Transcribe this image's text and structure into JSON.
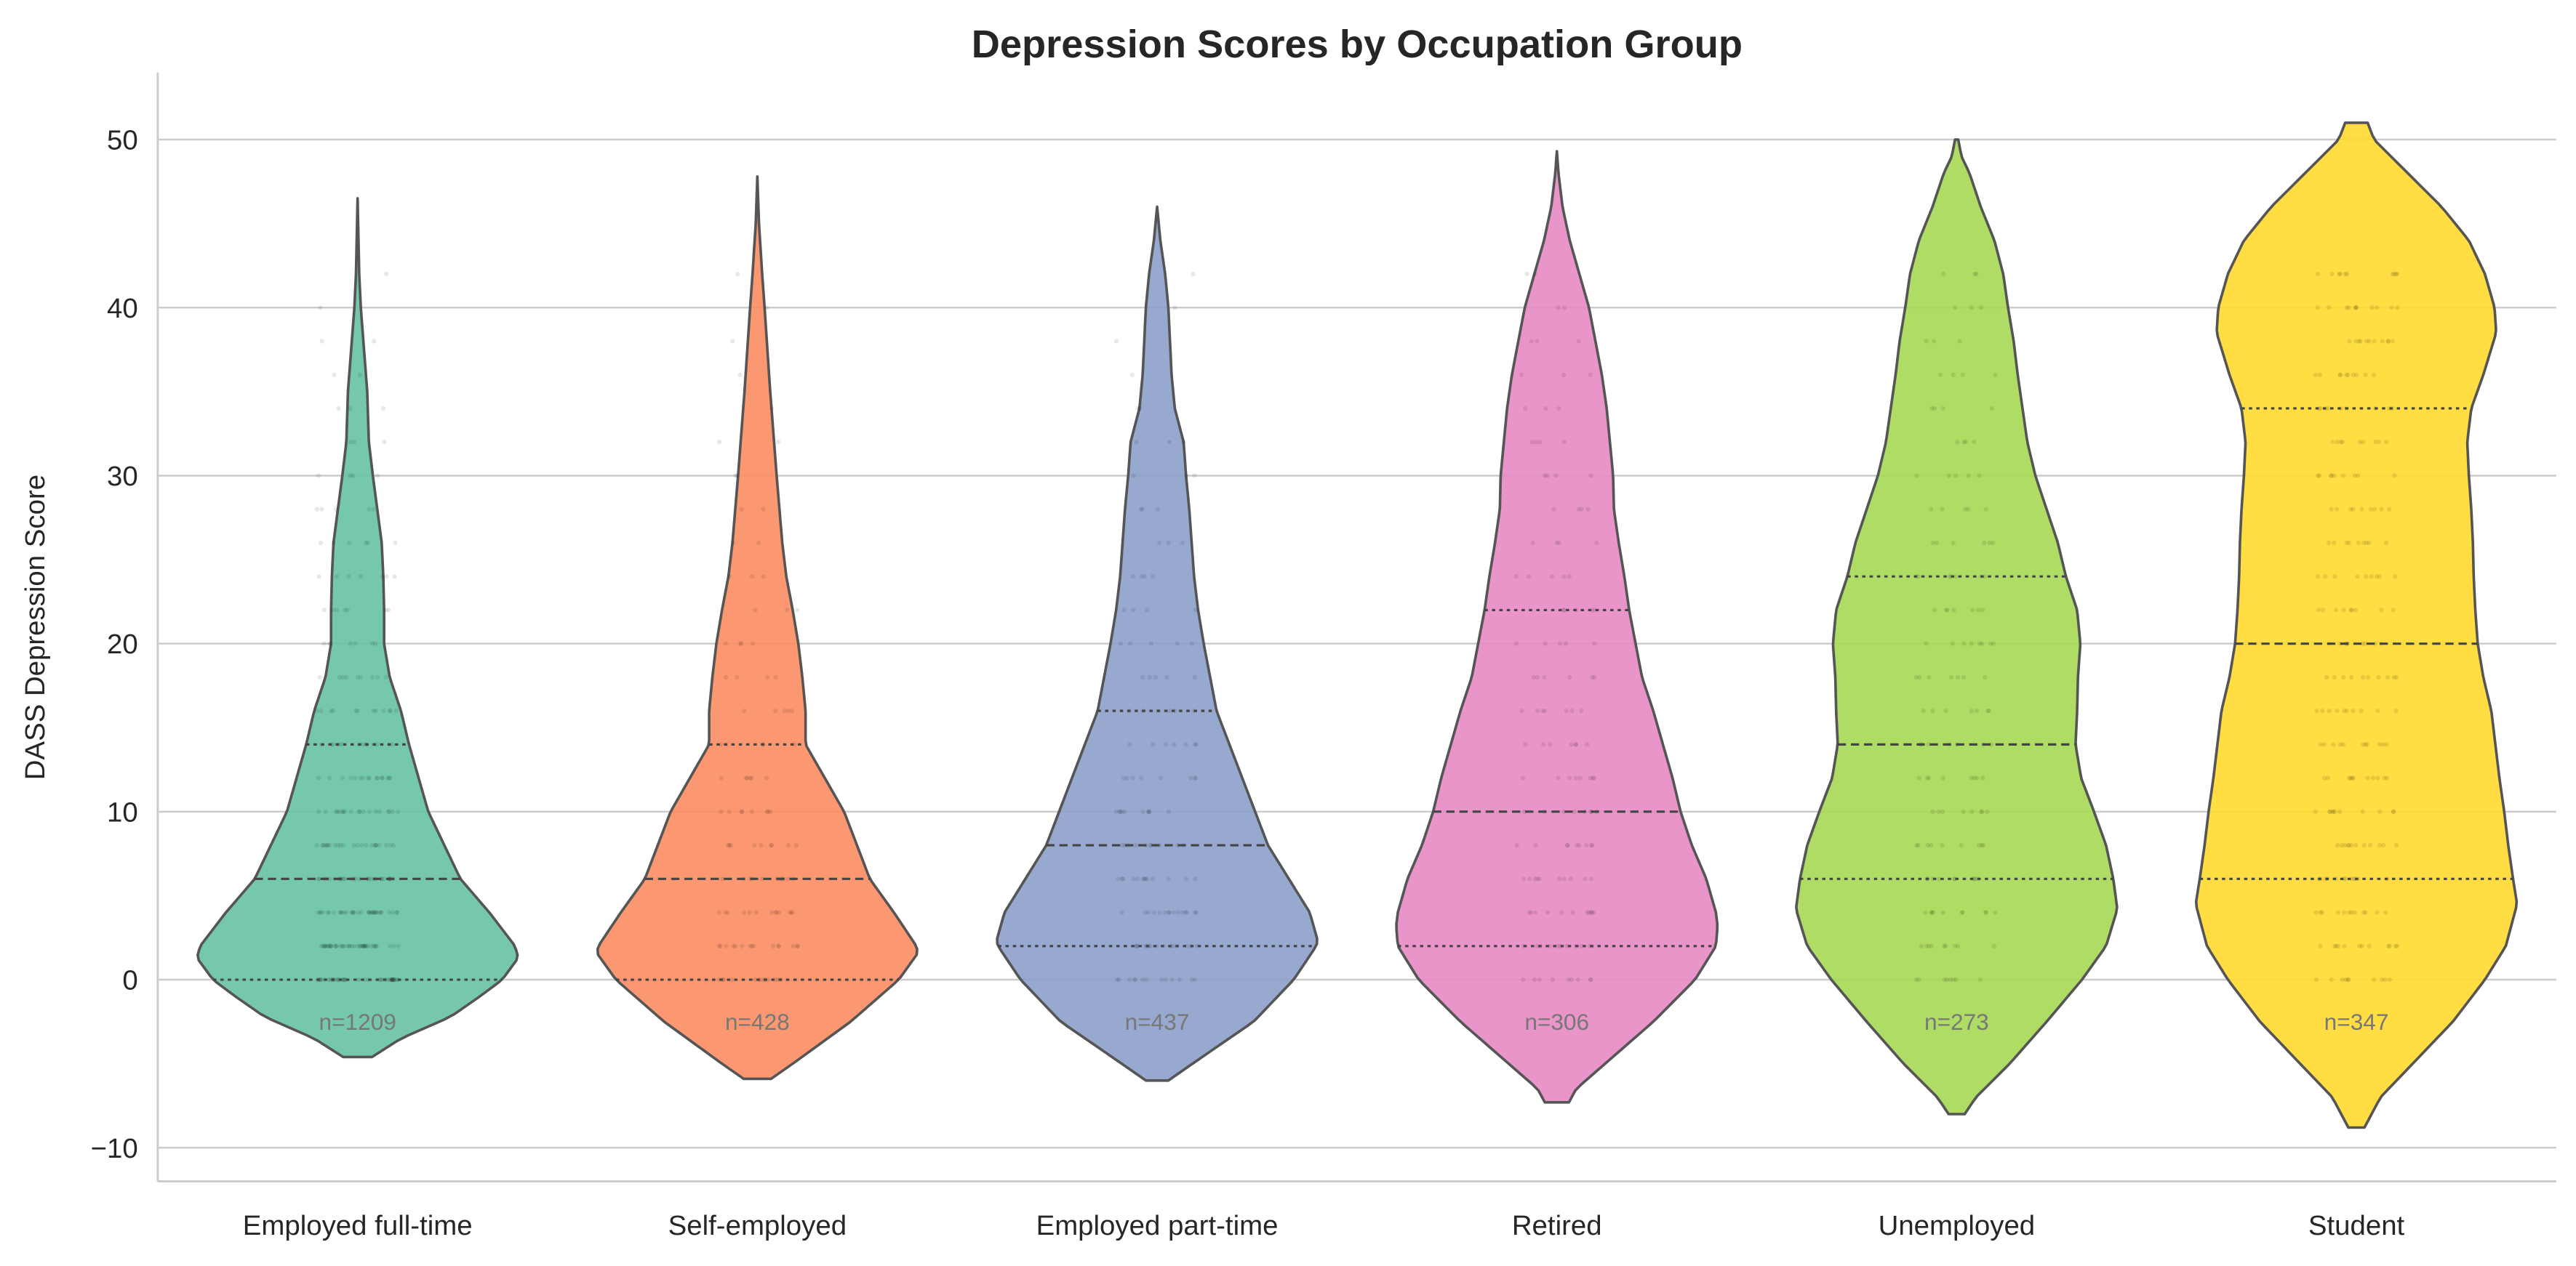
{
  "chart_data": {
    "type": "violin",
    "title": "Depression Scores by Occupation Group",
    "xlabel": "",
    "ylabel": "DASS Depression Score",
    "ylim": [
      -12,
      54
    ],
    "yticks": [
      "−10",
      "0",
      "10",
      "20",
      "30",
      "40",
      "50"
    ],
    "ytick_values": [
      -10,
      0,
      10,
      20,
      30,
      40,
      50
    ],
    "grid": "horizontal",
    "inner": "quartile",
    "overlay": "jittered strip points",
    "categories": [
      "Employed full-time",
      "Self-employed",
      "Employed part-time",
      "Retired",
      "Unemployed",
      "Student"
    ],
    "groups": [
      {
        "category": "Employed full-time",
        "n_label": "n=1209",
        "n": 1209,
        "color": "#66c2a5",
        "q1": 0,
        "median": 6,
        "q3": 14,
        "min": -4.6,
        "max": 46.5,
        "density": [
          [
            -4.6,
            0.09
          ],
          [
            -3.5,
            0.27
          ],
          [
            -2.2,
            0.58
          ],
          [
            -1,
            0.76
          ],
          [
            0,
            0.9
          ],
          [
            1.3,
            1.0
          ],
          [
            2,
            0.98
          ],
          [
            4,
            0.82
          ],
          [
            6,
            0.64
          ],
          [
            8,
            0.54
          ],
          [
            10,
            0.44
          ],
          [
            12,
            0.38
          ],
          [
            14,
            0.32
          ],
          [
            16,
            0.27
          ],
          [
            18,
            0.2
          ],
          [
            20,
            0.165
          ],
          [
            22,
            0.165
          ],
          [
            24,
            0.16
          ],
          [
            26,
            0.15
          ],
          [
            30,
            0.095
          ],
          [
            32,
            0.07
          ],
          [
            35,
            0.06
          ],
          [
            40,
            0.02
          ],
          [
            42,
            0.01
          ],
          [
            46.5,
            0
          ]
        ]
      },
      {
        "category": "Self-employed",
        "n_label": "n=428",
        "n": 428,
        "color": "#fc8d62",
        "q1": 0,
        "median": 6,
        "q3": 14,
        "min": -5.9,
        "max": 47.8,
        "density": [
          [
            -5.9,
            0.085
          ],
          [
            -5,
            0.22
          ],
          [
            -2.5,
            0.58
          ],
          [
            0,
            0.88
          ],
          [
            1.6,
            1.0
          ],
          [
            2,
            0.99
          ],
          [
            4,
            0.85
          ],
          [
            6,
            0.7
          ],
          [
            8,
            0.62
          ],
          [
            10,
            0.54
          ],
          [
            12,
            0.42
          ],
          [
            14,
            0.3
          ],
          [
            16,
            0.3
          ],
          [
            18,
            0.28
          ],
          [
            20,
            0.255
          ],
          [
            22,
            0.22
          ],
          [
            24,
            0.18
          ],
          [
            26,
            0.155
          ],
          [
            30,
            0.12
          ],
          [
            35,
            0.08
          ],
          [
            40,
            0.045
          ],
          [
            42,
            0.03
          ],
          [
            45,
            0.01
          ],
          [
            47.8,
            0
          ]
        ]
      },
      {
        "category": "Employed part-time",
        "n_label": "n=437",
        "n": 437,
        "color": "#8da0cb",
        "q1": 2,
        "median": 8,
        "q3": 16,
        "min": -6,
        "max": 46,
        "density": [
          [
            -6,
            0.07
          ],
          [
            -5,
            0.22
          ],
          [
            -2.5,
            0.6
          ],
          [
            0,
            0.85
          ],
          [
            2,
            0.99
          ],
          [
            2.3,
            1.0
          ],
          [
            4,
            0.95
          ],
          [
            6,
            0.82
          ],
          [
            8,
            0.69
          ],
          [
            10,
            0.61
          ],
          [
            12,
            0.53
          ],
          [
            14,
            0.45
          ],
          [
            16,
            0.37
          ],
          [
            18,
            0.33
          ],
          [
            20,
            0.29
          ],
          [
            22,
            0.255
          ],
          [
            24,
            0.23
          ],
          [
            26,
            0.215
          ],
          [
            28,
            0.2
          ],
          [
            30,
            0.18
          ],
          [
            32,
            0.165
          ],
          [
            34,
            0.11
          ],
          [
            36,
            0.09
          ],
          [
            40,
            0.07
          ],
          [
            42,
            0.05
          ],
          [
            44,
            0.02
          ],
          [
            46,
            0
          ]
        ]
      },
      {
        "category": "Retired",
        "n_label": "n=306",
        "n": 306,
        "color": "#e78ac3",
        "q1": 2,
        "median": 10,
        "q3": 22,
        "min": -7.3,
        "max": 49.3,
        "density": [
          [
            -7.3,
            0.075
          ],
          [
            -6.5,
            0.12
          ],
          [
            -5,
            0.3
          ],
          [
            -2.5,
            0.6
          ],
          [
            0,
            0.86
          ],
          [
            2,
            0.99
          ],
          [
            3.2,
            1.0
          ],
          [
            4,
            0.99
          ],
          [
            6,
            0.93
          ],
          [
            8,
            0.84
          ],
          [
            10,
            0.77
          ],
          [
            12,
            0.72
          ],
          [
            14,
            0.66
          ],
          [
            16,
            0.6
          ],
          [
            18,
            0.53
          ],
          [
            20,
            0.49
          ],
          [
            22,
            0.45
          ],
          [
            24,
            0.42
          ],
          [
            26,
            0.385
          ],
          [
            28,
            0.355
          ],
          [
            30,
            0.35
          ],
          [
            32,
            0.33
          ],
          [
            34,
            0.31
          ],
          [
            36,
            0.28
          ],
          [
            38,
            0.24
          ],
          [
            40,
            0.2
          ],
          [
            42,
            0.14
          ],
          [
            44,
            0.08
          ],
          [
            46,
            0.035
          ],
          [
            48,
            0.01
          ],
          [
            49.3,
            0
          ]
        ]
      },
      {
        "category": "Unemployed",
        "n_label": "n=273",
        "n": 273,
        "color": "#a6d854",
        "q1": 6,
        "median": 14,
        "q3": 24,
        "min": -8,
        "max": 50,
        "density": [
          [
            -8,
            0.05
          ],
          [
            -7,
            0.12
          ],
          [
            -5,
            0.33
          ],
          [
            -2.5,
            0.56
          ],
          [
            0,
            0.78
          ],
          [
            2,
            0.93
          ],
          [
            4.2,
            1.0
          ],
          [
            6,
            0.975
          ],
          [
            8,
            0.93
          ],
          [
            10,
            0.855
          ],
          [
            12,
            0.775
          ],
          [
            14,
            0.74
          ],
          [
            16,
            0.75
          ],
          [
            18,
            0.755
          ],
          [
            20,
            0.77
          ],
          [
            22,
            0.75
          ],
          [
            24,
            0.68
          ],
          [
            26,
            0.63
          ],
          [
            28,
            0.56
          ],
          [
            30,
            0.49
          ],
          [
            32,
            0.44
          ],
          [
            34,
            0.41
          ],
          [
            36,
            0.38
          ],
          [
            38,
            0.355
          ],
          [
            40,
            0.32
          ],
          [
            42,
            0.29
          ],
          [
            44,
            0.235
          ],
          [
            46,
            0.15
          ],
          [
            48,
            0.08
          ],
          [
            49,
            0.03
          ],
          [
            50,
            0.01
          ]
        ]
      },
      {
        "category": "Student",
        "n_label": "n=347",
        "n": 347,
        "color": "#ffd92f",
        "q1": 6,
        "median": 20,
        "q3": 34,
        "min": -8.8,
        "max": 51,
        "density": [
          [
            -8.8,
            0.05
          ],
          [
            -7,
            0.15
          ],
          [
            -5,
            0.35
          ],
          [
            -2.5,
            0.6
          ],
          [
            0,
            0.8
          ],
          [
            2,
            0.93
          ],
          [
            4.5,
            1.0
          ],
          [
            6,
            0.975
          ],
          [
            8,
            0.945
          ],
          [
            10,
            0.92
          ],
          [
            12,
            0.89
          ],
          [
            14,
            0.865
          ],
          [
            16,
            0.84
          ],
          [
            18,
            0.79
          ],
          [
            20,
            0.755
          ],
          [
            22,
            0.74
          ],
          [
            24,
            0.73
          ],
          [
            26,
            0.725
          ],
          [
            28,
            0.715
          ],
          [
            30,
            0.7
          ],
          [
            32,
            0.69
          ],
          [
            34,
            0.715
          ],
          [
            36,
            0.79
          ],
          [
            38.5,
            0.87
          ],
          [
            40,
            0.86
          ],
          [
            42,
            0.8
          ],
          [
            44,
            0.7
          ],
          [
            46,
            0.53
          ],
          [
            48,
            0.32
          ],
          [
            50,
            0.11
          ],
          [
            51,
            0.07
          ]
        ]
      }
    ]
  }
}
